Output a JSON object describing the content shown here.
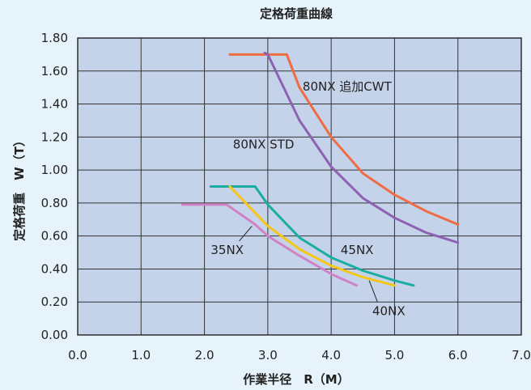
{
  "chart_data": {
    "type": "line",
    "title": "定格荷重曲線",
    "xlabel": "作業半径　R（M）",
    "ylabel": "定格荷重　W（T）",
    "xlim": [
      0,
      7
    ],
    "ylim": [
      0,
      1.8
    ],
    "x_ticks": [
      "0.0",
      "1.0",
      "2.0",
      "3.0",
      "4.0",
      "5.0",
      "6.0",
      "7.0"
    ],
    "y_ticks": [
      "0.00",
      "0.20",
      "0.40",
      "0.60",
      "0.80",
      "1.00",
      "1.20",
      "1.40",
      "1.60",
      "1.80"
    ],
    "grid": true,
    "plot_bg": "#c5d3ea",
    "page_bg": "#e6f3fb",
    "series": [
      {
        "name": "80NX 追加CWT",
        "color": "#ef6c43",
        "x": [
          2.4,
          3.0,
          3.2,
          3.3,
          3.5,
          4.0,
          4.5,
          5.0,
          5.5,
          6.0
        ],
        "y": [
          1.7,
          1.7,
          1.7,
          1.7,
          1.5,
          1.2,
          0.98,
          0.85,
          0.75,
          0.67
        ]
      },
      {
        "name": "80NX STD",
        "color": "#8e62b3",
        "x": [
          2.95,
          3.0,
          3.5,
          4.0,
          4.5,
          5.0,
          5.5,
          6.0
        ],
        "y": [
          1.71,
          1.7,
          1.3,
          1.02,
          0.83,
          0.71,
          0.62,
          0.56
        ]
      },
      {
        "name": "45NX",
        "color": "#1aada0",
        "x": [
          2.1,
          2.75,
          2.8,
          3.0,
          3.5,
          4.0,
          4.5,
          5.0,
          5.3
        ],
        "y": [
          0.9,
          0.9,
          0.9,
          0.79,
          0.59,
          0.47,
          0.39,
          0.33,
          0.3
        ]
      },
      {
        "name": "40NX",
        "color": "#f5c518",
        "x": [
          2.4,
          2.8,
          3.0,
          3.5,
          4.0,
          4.5,
          5.0
        ],
        "y": [
          0.9,
          0.74,
          0.66,
          0.52,
          0.42,
          0.35,
          0.3
        ]
      },
      {
        "name": "35NX",
        "color": "#d082c6",
        "x": [
          1.65,
          2.35,
          2.8,
          3.0,
          3.5,
          4.0,
          4.4
        ],
        "y": [
          0.79,
          0.79,
          0.67,
          0.6,
          0.48,
          0.37,
          0.3
        ]
      }
    ]
  }
}
